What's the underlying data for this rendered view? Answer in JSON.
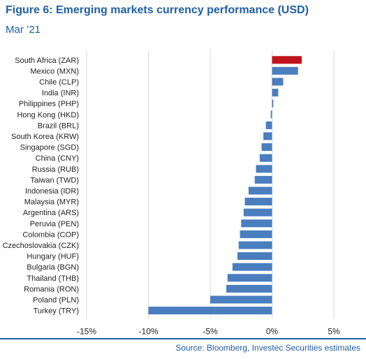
{
  "header": {
    "title": "Figure 6: Emerging markets currency performance (USD)",
    "subtitle": "Mar ’21"
  },
  "footer": {
    "source": "Source: Bloomberg, Investec Securities estimates"
  },
  "colors": {
    "accent": "#1f5fa8",
    "bar": "#4a7ebf",
    "highlight": "#c0141c",
    "grid": "#d9d9d9"
  },
  "chart_data": {
    "type": "bar",
    "orientation": "horizontal",
    "categories": [
      "South Africa (ZAR)",
      "Mexico (MXN)",
      "Chile (CLP)",
      "India (INR)",
      "Philippines (PHP)",
      "Hong Kong (HKD)",
      "Brazil (BRL)",
      "South Korea (KRW)",
      "Singapore (SGD)",
      "China (CNY)",
      "Russia (RUB)",
      "Taiwan (TWD)",
      "Indonesia (IDR)",
      "Malaysia (MYR)",
      "Argentina (ARS)",
      "Peruvia (PEN)",
      "Colombia (COP)",
      "Czechoslovakia (CZK)",
      "Hungary (HUF)",
      "Bulgaria (BGN)",
      "Thailand (THB)",
      "Romania (RON)",
      "Poland (PLN)",
      "Turkey (TRY)"
    ],
    "values": [
      2.4,
      2.1,
      0.9,
      0.5,
      0.1,
      -0.1,
      -0.5,
      -0.7,
      -0.85,
      -1.0,
      -1.3,
      -1.4,
      -1.9,
      -2.2,
      -2.3,
      -2.5,
      -2.6,
      -2.7,
      -2.8,
      -3.2,
      -3.6,
      -3.7,
      -5.0,
      -10.0
    ],
    "highlight_category": "South Africa (ZAR)",
    "xlim": [
      -15,
      5
    ],
    "xticks": [
      -15,
      -10,
      -5,
      0,
      5
    ],
    "xtick_labels": [
      "-15%",
      "-10%",
      "-5%",
      "0%",
      "5%"
    ],
    "grid": true,
    "xlabel": "",
    "ylabel": ""
  }
}
